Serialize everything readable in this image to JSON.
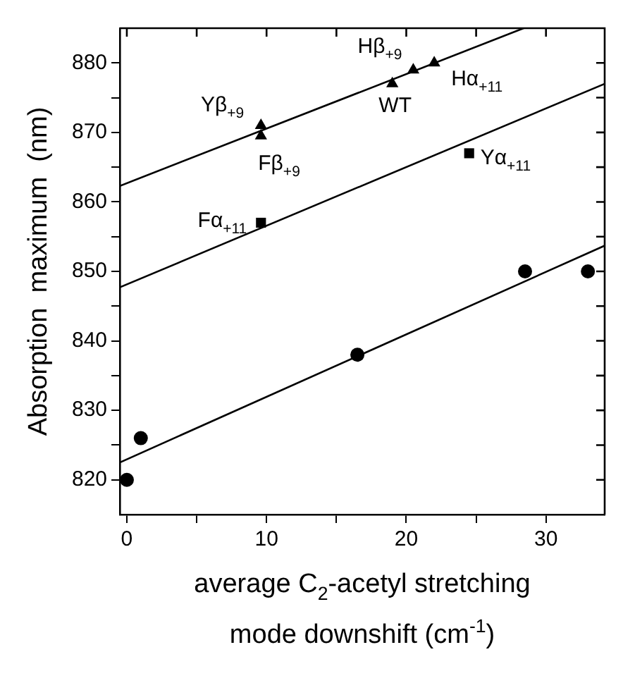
{
  "chart_data": {
    "type": "scatter",
    "xlabel": "average C$_{2}$-acetyl stretching mode downshift (cm$^{-1}$)",
    "ylabel": "Absorption  maximum  (nm)",
    "xlim": [
      -0.5,
      34.2
    ],
    "ylim": [
      815,
      885
    ],
    "xticks": [
      0,
      {
        "value": 5,
        "label": null
      },
      10,
      {
        "value": 15,
        "label": null
      },
      20,
      {
        "value": 25,
        "label": null
      },
      30
    ],
    "yticks": [
      820,
      {
        "value": 825,
        "label": null
      },
      830,
      {
        "value": 835,
        "label": null
      },
      840,
      {
        "value": 845,
        "label": null
      },
      850,
      {
        "value": 855,
        "label": null
      },
      860,
      {
        "value": 865,
        "label": null
      },
      870,
      {
        "value": 875,
        "label": null
      },
      880
    ],
    "grid": false,
    "legend": false,
    "series": [
      {
        "type": "scatter",
        "marker": "triangle",
        "color": "#000000",
        "x": [
          9.6,
          9.6,
          19,
          20.5,
          22
        ],
        "values": [
          871,
          869.5,
          877,
          879,
          880
        ]
      },
      {
        "type": "scatter",
        "marker": "square",
        "color": "#000000",
        "x": [
          9.6,
          24.5
        ],
        "values": [
          857,
          867
        ]
      },
      {
        "type": "scatter",
        "marker": "circle",
        "color": "#000000",
        "x": [
          0,
          1,
          16.5,
          28.5,
          33
        ],
        "values": [
          820,
          826,
          838,
          850,
          850
        ]
      },
      {
        "type": "line",
        "marker": "none",
        "color": "#000000",
        "x": [
          -0.5,
          28.4
        ],
        "values": [
          862.3,
          885
        ]
      },
      {
        "type": "line",
        "marker": "none",
        "color": "#000000",
        "x": [
          -0.5,
          34.2
        ],
        "values": [
          847.7,
          877
        ]
      },
      {
        "type": "line",
        "marker": "none",
        "color": "#000000",
        "x": [
          -0.5,
          34.2
        ],
        "values": [
          822.5,
          853.7
        ]
      }
    ],
    "annotations": [
      {
        "text": "Yβ$_{+9}$",
        "x": 9.6,
        "y": 871
      },
      {
        "text": "Fβ$_{+9}$",
        "x": 9.6,
        "y": 869.5
      },
      {
        "text": "WT",
        "x": 19,
        "y": 877
      },
      {
        "text": "Hβ$_{+9}$",
        "x": 20.5,
        "y": 879
      },
      {
        "text": "Hα$_{+11}$",
        "x": 22,
        "y": 880
      },
      {
        "text": "Fα$_{+11}$",
        "x": 9.6,
        "y": 857
      },
      {
        "text": "Yα$_{+11}$",
        "x": 24.5,
        "y": 867
      }
    ]
  }
}
